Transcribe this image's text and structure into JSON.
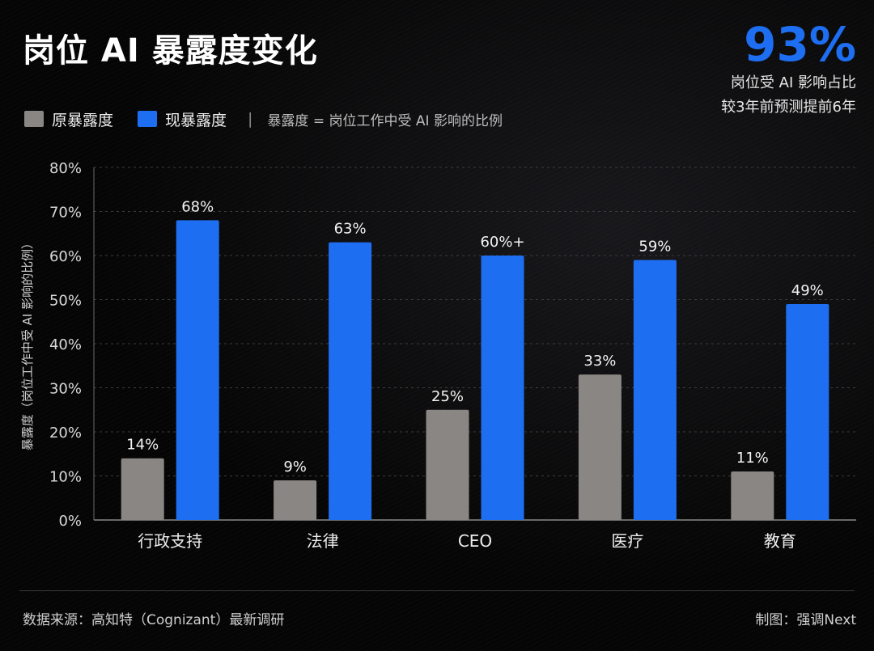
{
  "title": "岗位 AI 暴露度变化",
  "kpi": {
    "value": "93%",
    "line1": "岗位受 AI 影响占比",
    "line2": "较3年前预测提前6年"
  },
  "legend": {
    "original": "原暴露度",
    "current": "现暴露度",
    "separator": "|",
    "note": "暴露度 = 岗位工作中受 AI 影响的比例"
  },
  "colors": {
    "original": "#8a8684",
    "current": "#1e6ef2",
    "accent": "#1e6ef2"
  },
  "chart_data": {
    "type": "bar",
    "categories": [
      "行政支持",
      "法律",
      "CEO",
      "医疗",
      "教育"
    ],
    "series": [
      {
        "name": "原暴露度",
        "values": [
          14,
          9,
          25,
          33,
          11
        ],
        "labels": [
          "14%",
          "9%",
          "25%",
          "33%",
          "11%"
        ]
      },
      {
        "name": "现暴露度",
        "values": [
          68,
          63,
          60,
          59,
          49
        ],
        "labels": [
          "68%",
          "63%",
          "60%+",
          "59%",
          "49%"
        ]
      }
    ],
    "ylabel": "暴露度（岗位工作中受 AI 影响的比例）",
    "ylim": [
      0,
      80
    ],
    "yticks": [
      0,
      10,
      20,
      30,
      40,
      50,
      60,
      70,
      80
    ],
    "yticklabels": [
      "0%",
      "10%",
      "20%",
      "30%",
      "40%",
      "50%",
      "60%",
      "70%",
      "80%"
    ],
    "grid": true,
    "legend_position": "top-left"
  },
  "footer": {
    "source": "数据来源：高知特（Cognizant）最新调研",
    "credit": "制图：强调Next"
  }
}
